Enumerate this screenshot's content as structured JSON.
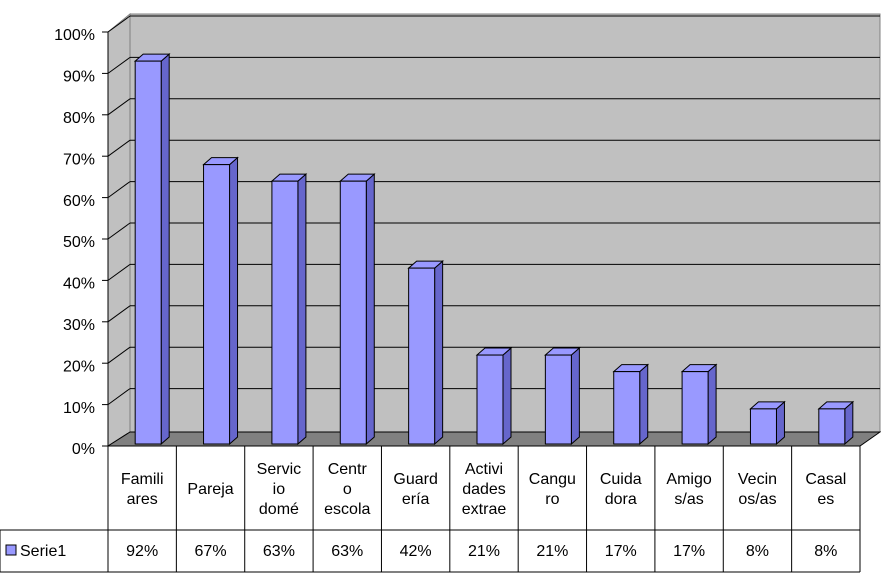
{
  "chart_data": {
    "type": "bar",
    "categories": [
      [
        "Famili",
        "ares"
      ],
      [
        "Pareja"
      ],
      [
        "Servic",
        "io",
        "domé"
      ],
      [
        "Centr",
        "o",
        "escola"
      ],
      [
        "Guard",
        "ería"
      ],
      [
        "Activi",
        "dades",
        "extrae"
      ],
      [
        "Cangu",
        "ro"
      ],
      [
        "Cuida",
        "dora"
      ],
      [
        "Amigo",
        "s/as"
      ],
      [
        "Vecin",
        "os/as"
      ],
      [
        "Casal",
        "es"
      ]
    ],
    "series": [
      {
        "name": "Serie1",
        "color": "#9999ff",
        "values": [
          92,
          67,
          63,
          63,
          42,
          21,
          21,
          17,
          17,
          8,
          8
        ],
        "value_labels": [
          "92%",
          "67%",
          "63%",
          "63%",
          "42%",
          "21%",
          "21%",
          "17%",
          "17%",
          "8%",
          "8%"
        ]
      }
    ],
    "ylim": [
      0,
      100
    ],
    "yticks": [
      {
        "value": 0,
        "label": "0%"
      },
      {
        "value": 10,
        "label": "10%"
      },
      {
        "value": 20,
        "label": "20%"
      },
      {
        "value": 30,
        "label": "30%"
      },
      {
        "value": 40,
        "label": "40%"
      },
      {
        "value": 50,
        "label": "50%"
      },
      {
        "value": 60,
        "label": "60%"
      },
      {
        "value": 70,
        "label": "70%"
      },
      {
        "value": 80,
        "label": "80%"
      },
      {
        "value": 90,
        "label": "90%"
      },
      {
        "value": 100,
        "label": "100%"
      }
    ],
    "grid": true
  }
}
